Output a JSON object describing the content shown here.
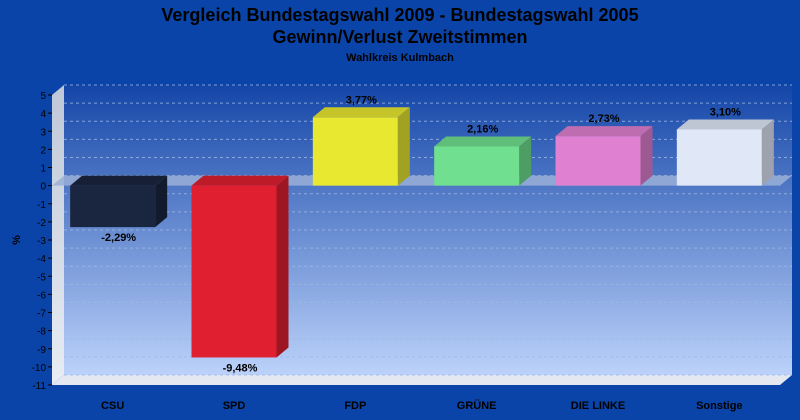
{
  "chart_data": {
    "type": "bar",
    "title_line1": "Vergleich Bundestagswahl 2009 - Bundestagswahl 2005",
    "title_line2": "Gewinn/Verlust Zweitstimmen",
    "subtitle": "Wahlkreis Kulmbach",
    "ylabel": "%",
    "xlabel": "",
    "ylim": [
      -11,
      5
    ],
    "yticks": [
      "5",
      "4",
      "3",
      "2",
      "1",
      "0",
      "-1",
      "-2",
      "-3",
      "-4",
      "-5",
      "-6",
      "-7",
      "-8",
      "-9",
      "-10",
      "-11"
    ],
    "categories": [
      "CSU",
      "SPD",
      "FDP",
      "GRÜNE",
      "DIE LINKE",
      "Sonstige"
    ],
    "values": [
      -2.29,
      -9.48,
      3.77,
      2.16,
      2.73,
      3.1
    ],
    "value_labels": [
      "-2,29%",
      "-9,48%",
      "3,77%",
      "2,16%",
      "2,73%",
      "3,10%"
    ],
    "colors": [
      "#1a2540",
      "#e02030",
      "#e8e830",
      "#70e090",
      "#e080d0",
      "#e0e8f8"
    ],
    "grid": true,
    "legend": "none"
  }
}
